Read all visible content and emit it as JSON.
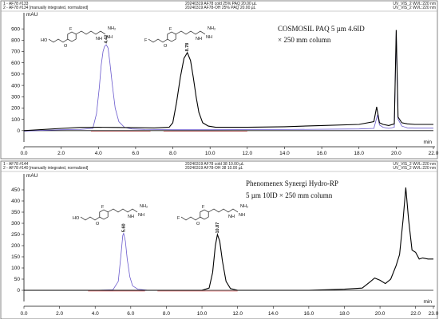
{
  "chart_data": [
    {
      "type": "line",
      "header": {
        "run_lines": [
          "1 - AF78 #133",
          "2 - AF78 #134  [manually integrated, normalized]"
        ],
        "sample_lines": [
          "20240319 AF78 cold 25% PAQ  20.00 µL",
          "20240319 AF78-OH 25% PAQ  20.00 µL"
        ],
        "detector_lines": [
          "UV_VIS_2 WVL:220 nm",
          "UV_VIS_2 WVL:220 nm"
        ]
      },
      "ylabel": "mAU",
      "xlabel": "min",
      "xlim": [
        0,
        22
      ],
      "ylim": [
        -100,
        1000
      ],
      "x_ticks": [
        "0.0",
        "2.0",
        "4.0",
        "6.0",
        "8.0",
        "10.0",
        "12.0",
        "14.0",
        "16.0",
        "18.0",
        "20.0",
        "22.0"
      ],
      "y_ticks": [
        "0",
        "100",
        "200",
        "300",
        "400",
        "500",
        "600",
        "700",
        "800",
        "900"
      ],
      "annotation_lines": [
        "COSMOSIL PAQ 5 µm 4.6ID",
        "× 250 mm column"
      ],
      "peak_labels": [
        "4.42",
        "8.78"
      ],
      "series": [
        {
          "color": "#6a5acd",
          "x": [
            0.0,
            1.0,
            2.0,
            3.0,
            3.7,
            3.9,
            4.05,
            4.15,
            4.25,
            4.33,
            4.42,
            4.52,
            4.62,
            4.75,
            4.9,
            5.1,
            5.4,
            5.8,
            6.5,
            8.0,
            10.0,
            14.0,
            18.0,
            18.8,
            19.0,
            19.1,
            19.3,
            19.6,
            19.9,
            20.0,
            20.1,
            20.3,
            20.6,
            21.0,
            22.0
          ],
          "y": [
            -5,
            2,
            8,
            10,
            20,
            150,
            380,
            580,
            700,
            745,
            760,
            730,
            600,
            400,
            200,
            80,
            30,
            15,
            10,
            8,
            8,
            10,
            15,
            20,
            140,
            50,
            30,
            20,
            30,
            880,
            100,
            40,
            25,
            22,
            22
          ]
        },
        {
          "color": "#000000",
          "x": [
            0.0,
            1.0,
            2.0,
            3.0,
            4.0,
            5.0,
            6.0,
            7.0,
            7.8,
            8.0,
            8.2,
            8.4,
            8.6,
            8.78,
            8.95,
            9.1,
            9.25,
            9.4,
            9.6,
            9.9,
            10.3,
            11.0,
            12.0,
            14.0,
            16.0,
            18.0,
            18.8,
            18.95,
            19.1,
            19.3,
            19.6,
            19.9,
            20.0,
            20.1,
            20.3,
            20.6,
            21.0,
            22.0
          ],
          "y": [
            0,
            10,
            20,
            28,
            30,
            28,
            26,
            24,
            30,
            70,
            250,
            470,
            640,
            690,
            620,
            470,
            300,
            160,
            70,
            40,
            30,
            30,
            30,
            35,
            45,
            55,
            80,
            210,
            70,
            55,
            45,
            60,
            890,
            120,
            70,
            60,
            55,
            55
          ]
        }
      ]
    },
    {
      "type": "line",
      "header": {
        "run_lines": [
          "1 - AF78 #144",
          "2 - AF78 #140  [manually integrated, normalized]"
        ],
        "sample_lines": [
          "20240319 AF78 cold 38  10.00 µL",
          "20240319 AF78-OH 38  10.00 µL"
        ],
        "detector_lines": [
          "UV_VIS_2 WVL:220 nm",
          "UV_VIS_2 WVL:220 nm"
        ]
      },
      "ylabel": "mAU",
      "xlabel": "min",
      "xlim": [
        0,
        23
      ],
      "ylim": [
        -50,
        500
      ],
      "x_ticks": [
        "0.0",
        "2.0",
        "4.0",
        "6.0",
        "8.0",
        "10.0",
        "12.0",
        "14.0",
        "16.0",
        "18.0",
        "20.0",
        "22.0",
        "23.0"
      ],
      "y_ticks": [
        "0",
        "50",
        "100",
        "150",
        "200",
        "250",
        "300",
        "350",
        "400",
        "450"
      ],
      "annotation_lines": [
        "Phenomenex Synergi Hydro-RP",
        "5 µm 10ID × 250 mm column"
      ],
      "peak_labels": [
        "5.60",
        "10.87"
      ],
      "series": [
        {
          "color": "#6a5acd",
          "x": [
            0.0,
            2.0,
            4.0,
            5.0,
            5.3,
            5.45,
            5.55,
            5.6,
            5.7,
            5.8,
            5.95,
            6.1,
            6.4,
            7.0,
            8.0
          ],
          "y": [
            0,
            0,
            0,
            2,
            40,
            160,
            245,
            255,
            220,
            140,
            60,
            20,
            5,
            0,
            0
          ]
        },
        {
          "color": "#000000",
          "x": [
            0.0,
            2.0,
            4.0,
            6.0,
            8.0,
            10.0,
            10.4,
            10.6,
            10.75,
            10.87,
            11.0,
            11.15,
            11.35,
            11.6,
            12.0,
            14.0,
            16.0,
            18.0,
            19.0,
            19.4,
            19.7,
            20.0,
            20.3,
            20.6,
            20.9,
            21.1,
            21.3,
            21.45,
            21.6,
            21.8,
            22.0,
            22.2,
            22.4,
            22.7,
            23.0
          ],
          "y": [
            0,
            0,
            0,
            0,
            0,
            0,
            10,
            80,
            200,
            250,
            220,
            130,
            40,
            8,
            0,
            0,
            0,
            5,
            10,
            35,
            55,
            45,
            30,
            50,
            110,
            160,
            320,
            460,
            320,
            180,
            170,
            140,
            145,
            140,
            140
          ]
        }
      ]
    }
  ]
}
